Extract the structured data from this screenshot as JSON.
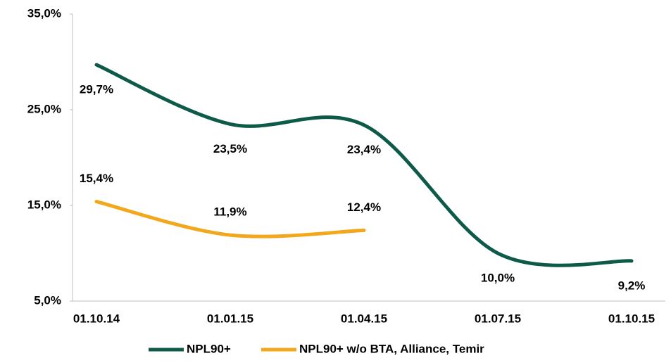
{
  "chart_data": {
    "type": "line",
    "categories": [
      "01.10.14",
      "01.01.15",
      "01.04.15",
      "01.07.15",
      "01.10.15"
    ],
    "series": [
      {
        "name": "NPL90+",
        "color": "#0e5a48",
        "values": [
          29.7,
          23.5,
          23.4,
          10.0,
          9.2
        ],
        "value_labels": [
          "29,7%",
          "23,5%",
          "23,4%",
          "10,0%",
          "9,2%"
        ]
      },
      {
        "name": "NPL90+ w/o BTA, Alliance, Temir",
        "color": "#f2a81d",
        "values": [
          15.4,
          11.9,
          12.4,
          null,
          null
        ],
        "value_labels": [
          "15,4%",
          "11,9%",
          "12,4%",
          null,
          null
        ]
      }
    ],
    "ylim": [
      5,
      35
    ],
    "yticks": [
      {
        "value": 5,
        "label": "5,0%"
      },
      {
        "value": 15,
        "label": "15,0%"
      },
      {
        "value": 25,
        "label": "25,0%"
      },
      {
        "value": 35,
        "label": "35,0%"
      }
    ],
    "grid": false,
    "legend": "bottom"
  }
}
